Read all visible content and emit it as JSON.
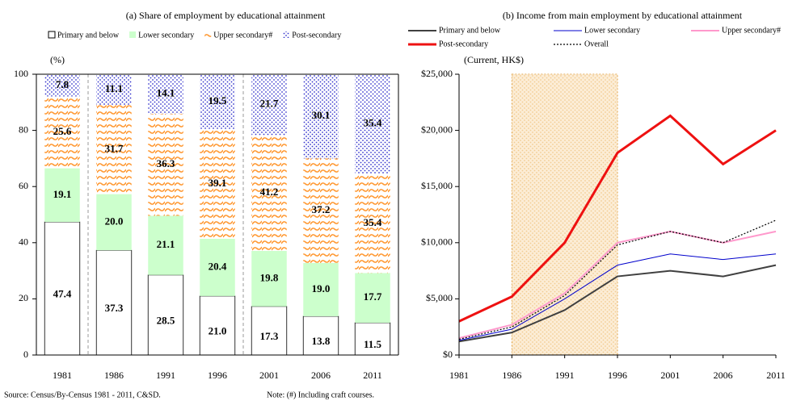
{
  "chart_data": [
    {
      "type": "bar",
      "stacked": true,
      "title": "(a) Share of employment by educational attainment",
      "y_label": "(%)",
      "categories": [
        "1981",
        "1986",
        "1991",
        "1996",
        "2001",
        "2006",
        "2011"
      ],
      "series": [
        {
          "name": "Primary and below",
          "color": "#ffffff",
          "pattern": "none",
          "values": [
            47.4,
            37.3,
            28.5,
            21.0,
            17.3,
            13.8,
            11.5
          ],
          "value_labels": [
            "47.4",
            "37.3",
            "28.5",
            "21.0",
            "17.3",
            "13.8",
            "11.5"
          ]
        },
        {
          "name": "Lower secondary",
          "color": "#ccffcc",
          "pattern": "none",
          "values": [
            19.1,
            20.0,
            21.1,
            20.4,
            19.8,
            19.0,
            17.7
          ],
          "value_labels": [
            "19.1",
            "20.0",
            "21.1",
            "20.4",
            "19.8",
            "19.0",
            "17.7"
          ]
        },
        {
          "name": "Upper secondary#",
          "color": "#ff9933",
          "pattern": "wave",
          "values": [
            25.6,
            31.7,
            36.3,
            39.1,
            41.2,
            37.2,
            35.4
          ],
          "value_labels": [
            "25.6",
            "31.7",
            "36.3",
            "39.1",
            "41.2",
            "37.2",
            "35.4"
          ]
        },
        {
          "name": "Post-secondary",
          "color": "#3333cc",
          "pattern": "dots",
          "values": [
            7.8,
            11.1,
            14.1,
            19.5,
            21.7,
            30.1,
            35.4
          ],
          "value_labels": [
            "7.8",
            "11.1",
            "14.1",
            "19.5",
            "21.7",
            "30.1",
            "35.4"
          ]
        }
      ],
      "ylim": [
        0,
        100
      ],
      "yticks": [
        0,
        20,
        40,
        60,
        80,
        100
      ]
    },
    {
      "type": "line",
      "title": "(b) Income from main employment by educational attainment",
      "y_label": "(Current, HK$)",
      "x": [
        1981,
        1986,
        1991,
        1996,
        2001,
        2006,
        2011
      ],
      "series": [
        {
          "name": "Primary and below",
          "color": "#404040",
          "width": 2,
          "dash": "none",
          "values": [
            1200,
            2000,
            4000,
            7000,
            7500,
            7000,
            8000
          ]
        },
        {
          "name": "Lower secondary",
          "color": "#0000cc",
          "width": 1,
          "dash": "none",
          "values": [
            1300,
            2300,
            5000,
            8000,
            9000,
            8500,
            9000
          ]
        },
        {
          "name": "Upper secondary#",
          "color": "#ff99cc",
          "width": 2,
          "dash": "none",
          "values": [
            1500,
            2700,
            5500,
            10000,
            11000,
            10000,
            11000
          ]
        },
        {
          "name": "Post-secondary",
          "color": "#ee1111",
          "width": 3,
          "dash": "none",
          "values": [
            3000,
            5200,
            10000,
            18000,
            21300,
            17000,
            20000
          ]
        },
        {
          "name": "Overall",
          "color": "#000000",
          "width": 1.2,
          "dash": "2 2",
          "values": [
            1400,
            2500,
            5300,
            9800,
            11000,
            10000,
            12000
          ]
        }
      ],
      "shade": [
        1986,
        1996
      ],
      "xlim": [
        1981,
        2011
      ],
      "xticks": [
        1981,
        1986,
        1991,
        1996,
        2001,
        2006,
        2011
      ],
      "ylim": [
        0,
        25000
      ],
      "yticks": [
        {
          "value": 0,
          "label": "$0"
        },
        {
          "value": 5000,
          "label": "$5,000"
        },
        {
          "value": 10000,
          "label": "$10,000"
        },
        {
          "value": 15000,
          "label": "$15,000"
        },
        {
          "value": 20000,
          "label": "$20,000"
        },
        {
          "value": 25000,
          "label": "$25,000"
        }
      ]
    }
  ],
  "source": "Source: Census/By-Census 1981 - 2011, C&SD.",
  "note": "Note: (#) Including craft courses."
}
